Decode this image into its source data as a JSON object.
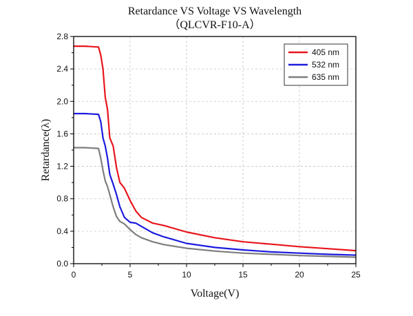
{
  "chart_data": {
    "type": "line",
    "title": "Retardance VS Voltage VS Wavelength",
    "subtitle": "（QLCVR-F10-A）",
    "xlabel": "Voltage(V)",
    "ylabel": "Retardance(λ)",
    "xlim": [
      0,
      25
    ],
    "ylim": [
      0,
      2.8
    ],
    "xticks": [
      0,
      5,
      10,
      15,
      20,
      25
    ],
    "yticks": [
      0.0,
      0.4,
      0.8,
      1.2,
      1.6,
      2.0,
      2.4,
      2.8
    ],
    "ytick_labels": [
      "0.0",
      "0.4",
      "0.8",
      "1.2",
      "1.6",
      "2.0",
      "2.4",
      "2.8"
    ],
    "grid": true,
    "legend_position": "top-right",
    "series": [
      {
        "name": "405 nm",
        "color": "#e8141b",
        "x": [
          0,
          1,
          2.2,
          2.4,
          2.6,
          2.8,
          3.0,
          3.2,
          3.5,
          3.8,
          4.1,
          4.5,
          5.0,
          5.5,
          6.0,
          7.0,
          8.0,
          10.0,
          12.5,
          15.0,
          17.5,
          20.0,
          22.5,
          25.0
        ],
        "y": [
          2.68,
          2.68,
          2.67,
          2.57,
          2.4,
          2.05,
          1.9,
          1.55,
          1.45,
          1.18,
          1.0,
          0.93,
          0.78,
          0.65,
          0.57,
          0.5,
          0.47,
          0.39,
          0.32,
          0.27,
          0.24,
          0.21,
          0.185,
          0.16
        ]
      },
      {
        "name": "532 nm",
        "color": "#1a1adf",
        "x": [
          0,
          1,
          2.2,
          2.4,
          2.6,
          2.8,
          3.0,
          3.2,
          3.5,
          3.8,
          4.1,
          4.5,
          5.0,
          5.5,
          6.0,
          7.0,
          8.0,
          10.0,
          12.5,
          15.0,
          17.5,
          20.0,
          22.5,
          25.0
        ],
        "y": [
          1.85,
          1.85,
          1.84,
          1.75,
          1.55,
          1.45,
          1.3,
          1.1,
          0.98,
          0.85,
          0.7,
          0.57,
          0.51,
          0.5,
          0.46,
          0.38,
          0.33,
          0.25,
          0.2,
          0.17,
          0.145,
          0.13,
          0.115,
          0.105
        ]
      },
      {
        "name": "635 nm",
        "color": "#7d7d7d",
        "x": [
          0,
          1,
          2.2,
          2.4,
          2.6,
          2.8,
          3.0,
          3.2,
          3.5,
          3.8,
          4.1,
          4.5,
          5.0,
          5.5,
          6.0,
          7.0,
          8.0,
          10.0,
          12.5,
          15.0,
          17.5,
          20.0,
          22.5,
          25.0
        ],
        "y": [
          1.43,
          1.43,
          1.42,
          1.3,
          1.15,
          1.02,
          0.95,
          0.85,
          0.7,
          0.58,
          0.52,
          0.49,
          0.42,
          0.36,
          0.32,
          0.27,
          0.235,
          0.19,
          0.155,
          0.13,
          0.115,
          0.1,
          0.09,
          0.08
        ]
      }
    ]
  }
}
